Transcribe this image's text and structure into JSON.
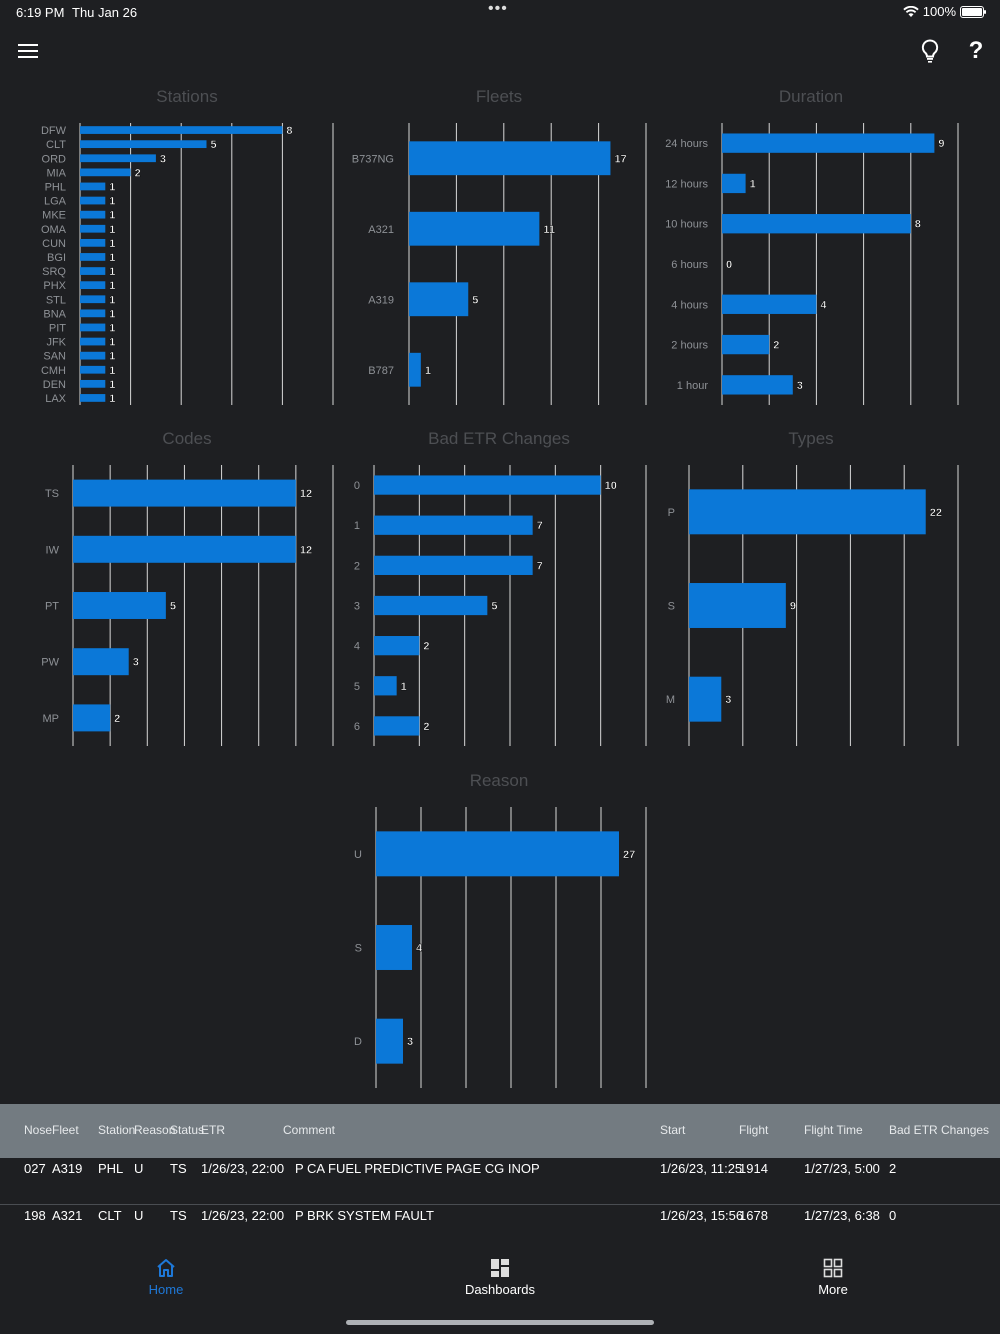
{
  "status_bar": {
    "time": "6:19 PM",
    "date": "Thu Jan 26",
    "dots": "•••",
    "battery_percent": "100%"
  },
  "nav_bar": {
    "menu_icon": "hamburger-menu-icon",
    "bulb_icon": "lightbulb-icon",
    "help_icon": "question-mark-icon",
    "help_glyph": "?"
  },
  "colors": {
    "bar": "#0b78d8",
    "background": "#1e1f22",
    "grid": "#d8d8d8",
    "title": "#4d4f53",
    "table_header_bg": "#737b81"
  },
  "chart_data": [
    {
      "id": "stations",
      "type": "bar",
      "orientation": "horizontal",
      "title": "Stations",
      "categories": [
        "DFW",
        "CLT",
        "ORD",
        "MIA",
        "PHL",
        "LGA",
        "MKE",
        "OMA",
        "CUN",
        "BGI",
        "SRQ",
        "PHX",
        "STL",
        "BNA",
        "PIT",
        "JFK",
        "SAN",
        "CMH",
        "DEN",
        "LAX"
      ],
      "values": [
        8,
        5,
        3,
        2,
        1,
        1,
        1,
        1,
        1,
        1,
        1,
        1,
        1,
        1,
        1,
        1,
        1,
        1,
        1,
        1
      ],
      "xlim": [
        0,
        10
      ],
      "grid": true
    },
    {
      "id": "fleets",
      "type": "bar",
      "orientation": "horizontal",
      "title": "Fleets",
      "categories": [
        "B737NG",
        "A321",
        "A319",
        "B787"
      ],
      "values": [
        17,
        11,
        5,
        1
      ],
      "xlim": [
        0,
        20
      ],
      "grid": true
    },
    {
      "id": "duration",
      "type": "bar",
      "orientation": "horizontal",
      "title": "Duration",
      "categories": [
        "24 hours",
        "12 hours",
        "10 hours",
        "6 hours",
        "4 hours",
        "2 hours",
        "1 hour"
      ],
      "values": [
        9,
        1,
        8,
        0,
        4,
        2,
        3
      ],
      "xlim": [
        0,
        10
      ],
      "grid": true
    },
    {
      "id": "codes",
      "type": "bar",
      "orientation": "horizontal",
      "title": "Codes",
      "categories": [
        "TS",
        "IW",
        "PT",
        "PW",
        "MP"
      ],
      "values": [
        12,
        12,
        5,
        3,
        2
      ],
      "xlim": [
        0,
        14
      ],
      "grid": true
    },
    {
      "id": "bad-etr-changes",
      "type": "bar",
      "orientation": "horizontal",
      "title": "Bad ETR Changes",
      "categories": [
        "0",
        "1",
        "2",
        "3",
        "4",
        "5",
        "6"
      ],
      "values": [
        10,
        7,
        7,
        5,
        2,
        1,
        2
      ],
      "xlim": [
        0,
        12
      ],
      "grid": true
    },
    {
      "id": "types",
      "type": "bar",
      "orientation": "horizontal",
      "title": "Types",
      "categories": [
        "P",
        "S",
        "M"
      ],
      "values": [
        22,
        9,
        3
      ],
      "xlim": [
        0,
        25
      ],
      "grid": true
    },
    {
      "id": "reason",
      "type": "bar",
      "orientation": "horizontal",
      "title": "Reason",
      "categories": [
        "U",
        "S",
        "D"
      ],
      "values": [
        27,
        4,
        3
      ],
      "xlim": [
        0,
        30
      ],
      "grid": true
    }
  ],
  "table": {
    "columns": [
      "Nose",
      "Fleet",
      "Station",
      "Reason",
      "Status",
      "ETR",
      "Comment",
      "Start",
      "Flight",
      "Flight Time",
      "Bad ETR Changes"
    ],
    "rows": [
      {
        "nose": "027",
        "fleet": "A319",
        "station": "PHL",
        "reason": "U",
        "status": "TS",
        "etr": "1/26/23, 22:00",
        "comment": "P CA FUEL PREDICTIVE PAGE CG INOP",
        "start": "1/26/23, 11:25",
        "flight": "1914",
        "flight_time": "1/27/23, 5:00",
        "bad_etr": "2"
      },
      {
        "nose": "198",
        "fleet": "A321",
        "station": "CLT",
        "reason": "U",
        "status": "TS",
        "etr": "1/26/23, 22:00",
        "comment": "P BRK SYSTEM FAULT",
        "start": "1/26/23, 15:56",
        "flight": "1678",
        "flight_time": "1/27/23, 6:38",
        "bad_etr": "0"
      }
    ]
  },
  "tab_bar": {
    "tabs": [
      {
        "label": "Home",
        "icon": "home-icon",
        "active": true
      },
      {
        "label": "Dashboards",
        "icon": "dashboards-icon",
        "active": false
      },
      {
        "label": "More",
        "icon": "more-grid-icon",
        "active": false
      }
    ]
  }
}
